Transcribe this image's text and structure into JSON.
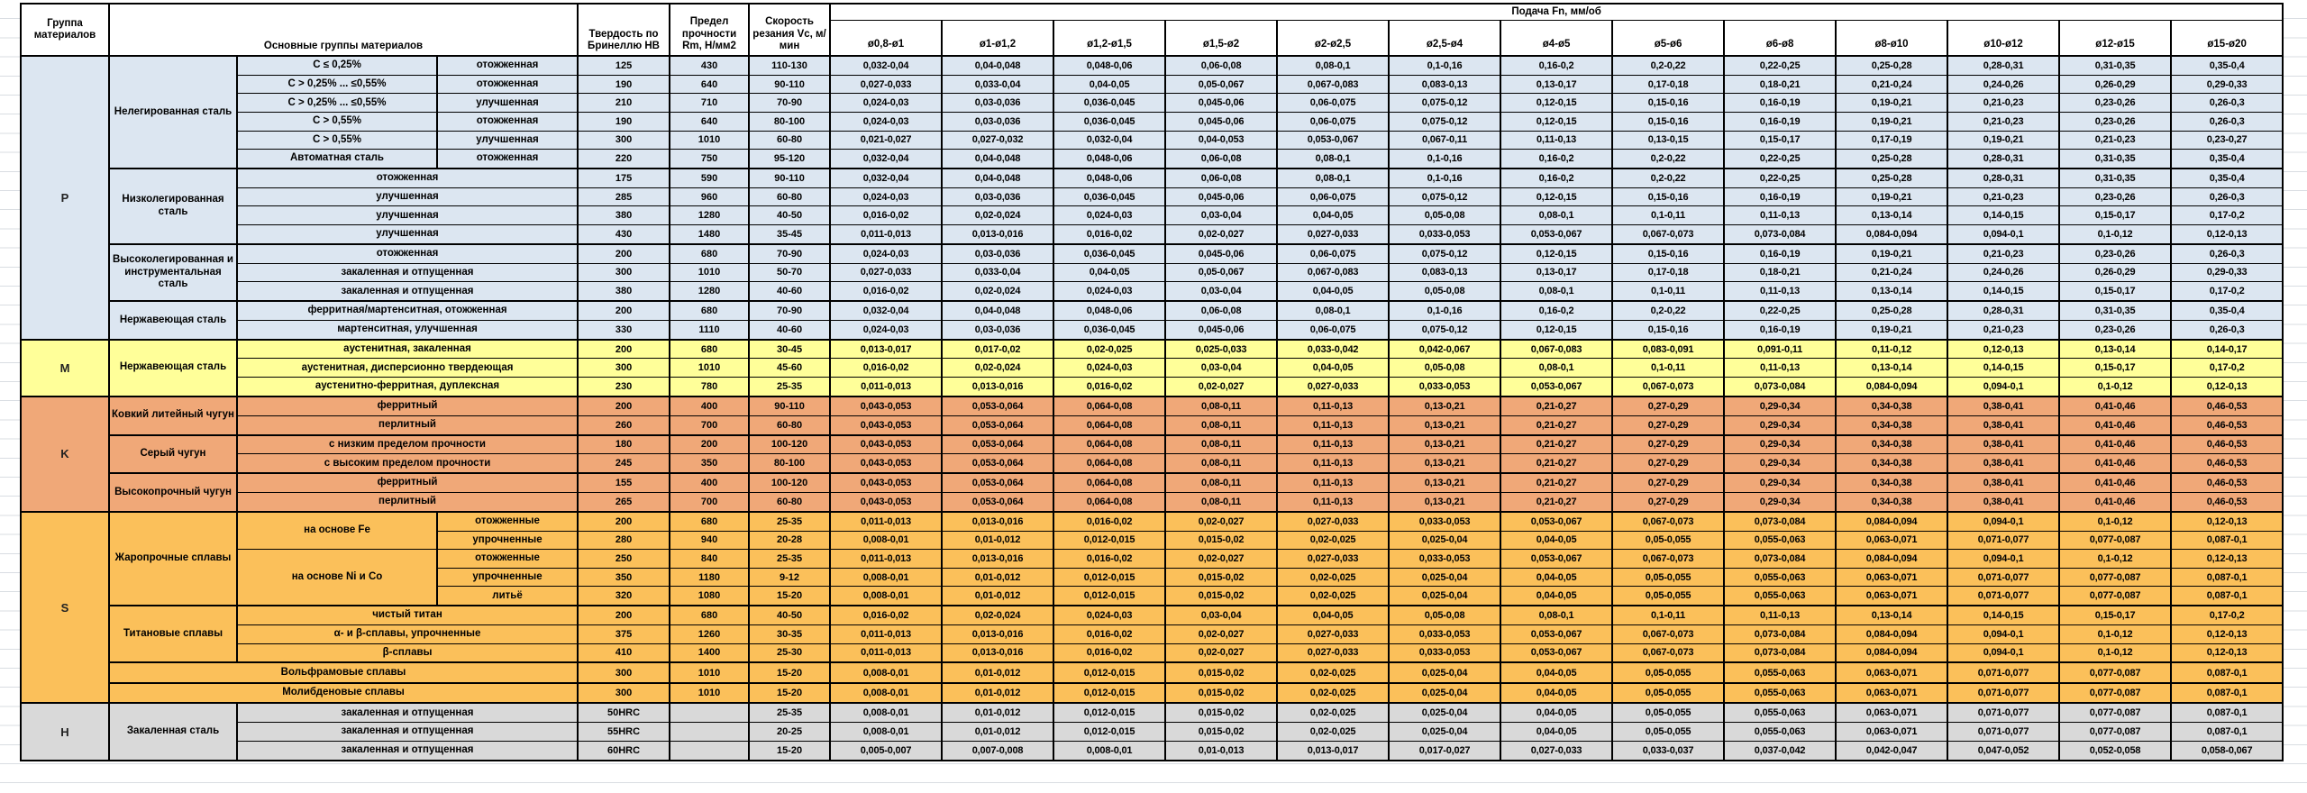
{
  "header": {
    "group_col": "Группа материалов",
    "materials_col": "Основные группы материалов",
    "hardness_col": "Твердость по Бринеллю HB",
    "strength_col": "Предел прочности Rm, Н/мм2",
    "speed_col": "Скорость резания Vc, м/мин",
    "feed_col": "Подача Fn, мм/об",
    "diameters": [
      "ø0,8-ø1",
      "ø1-ø1,2",
      "ø1,2-ø1,5",
      "ø1,5-ø2",
      "ø2-ø2,5",
      "ø2,5-ø4",
      "ø4-ø5",
      "ø5-ø6",
      "ø6-ø8",
      "ø8-ø10",
      "ø10-ø12",
      "ø12-ø15",
      "ø15-ø20"
    ]
  },
  "colors": {
    "P": "#dce6f1",
    "M": "#ffff99",
    "K": "#f0a878",
    "S": "#fbc05a",
    "H": "#d9d9d9"
  },
  "feed_templates": {
    "a": [
      "0,032-0,04",
      "0,04-0,048",
      "0,048-0,06",
      "0,06-0,08",
      "0,08-0,1",
      "0,1-0,16",
      "0,16-0,2",
      "0,2-0,22",
      "0,22-0,25",
      "0,25-0,28",
      "0,28-0,31",
      "0,31-0,35",
      "0,35-0,4"
    ],
    "b": [
      "0,027-0,033",
      "0,033-0,04",
      "0,04-0,05",
      "0,05-0,067",
      "0,067-0,083",
      "0,083-0,13",
      "0,13-0,17",
      "0,17-0,18",
      "0,18-0,21",
      "0,21-0,24",
      "0,24-0,26",
      "0,26-0,29",
      "0,29-0,33"
    ],
    "c": [
      "0,024-0,03",
      "0,03-0,036",
      "0,036-0,045",
      "0,045-0,06",
      "0,06-0,075",
      "0,075-0,12",
      "0,12-0,15",
      "0,15-0,16",
      "0,16-0,19",
      "0,19-0,21",
      "0,21-0,23",
      "0,23-0,26",
      "0,26-0,3"
    ],
    "d": [
      "0,021-0,027",
      "0,027-0,032",
      "0,032-0,04",
      "0,04-0,053",
      "0,053-0,067",
      "0,067-0,11",
      "0,11-0,13",
      "0,13-0,15",
      "0,15-0,17",
      "0,17-0,19",
      "0,19-0,21",
      "0,21-0,23",
      "0,23-0,27"
    ],
    "e": [
      "0,016-0,02",
      "0,02-0,024",
      "0,024-0,03",
      "0,03-0,04",
      "0,04-0,05",
      "0,05-0,08",
      "0,08-0,1",
      "0,1-0,11",
      "0,11-0,13",
      "0,13-0,14",
      "0,14-0,15",
      "0,15-0,17",
      "0,17-0,2"
    ],
    "f": [
      "0,011-0,013",
      "0,013-0,016",
      "0,016-0,02",
      "0,02-0,027",
      "0,027-0,033",
      "0,033-0,053",
      "0,053-0,067",
      "0,067-0,073",
      "0,073-0,084",
      "0,084-0,094",
      "0,094-0,1",
      "0,1-0,12",
      "0,12-0,13"
    ],
    "g": [
      "0,013-0,017",
      "0,017-0,02",
      "0,02-0,025",
      "0,025-0,033",
      "0,033-0,042",
      "0,042-0,067",
      "0,067-0,083",
      "0,083-0,091",
      "0,091-0,11",
      "0,11-0,12",
      "0,12-0,13",
      "0,13-0,14",
      "0,14-0,17"
    ],
    "h": [
      "0,043-0,053",
      "0,053-0,064",
      "0,064-0,08",
      "0,08-0,11",
      "0,11-0,13",
      "0,13-0,21",
      "0,21-0,27",
      "0,27-0,29",
      "0,29-0,34",
      "0,34-0,38",
      "0,38-0,41",
      "0,41-0,46",
      "0,46-0,53"
    ],
    "i": [
      "0,008-0,01",
      "0,01-0,012",
      "0,012-0,015",
      "0,015-0,02",
      "0,02-0,025",
      "0,025-0,04",
      "0,04-0,05",
      "0,05-0,055",
      "0,055-0,063",
      "0,063-0,071",
      "0,071-0,077",
      "0,077-0,087",
      "0,087-0,1"
    ],
    "j": [
      "0,005-0,007",
      "0,007-0,008",
      "0,008-0,01",
      "0,01-0,013",
      "0,013-0,017",
      "0,017-0,027",
      "0,027-0,033",
      "0,033-0,037",
      "0,037-0,042",
      "0,042-0,047",
      "0,047-0,052",
      "0,052-0,058",
      "0,058-0,067"
    ]
  },
  "groups": [
    {
      "letter": "P",
      "materials": [
        {
          "name": "Нелегированная сталь",
          "rows": [
            {
              "mid": [
                {
                  "t": "C ≤ 0,25%"
                },
                {
                  "t": "отожженная"
                }
              ],
              "hb": "125",
              "rm": "430",
              "vc": "110-130",
              "feed": "a"
            },
            {
              "mid": [
                {
                  "t": "C > 0,25% ... ≤0,55%"
                },
                {
                  "t": "отожженная"
                }
              ],
              "hb": "190",
              "rm": "640",
              "vc": "90-110",
              "feed": "b"
            },
            {
              "mid": [
                {
                  "t": "C > 0,25% ... ≤0,55%"
                },
                {
                  "t": "улучшенная"
                }
              ],
              "hb": "210",
              "rm": "710",
              "vc": "70-90",
              "feed": "c"
            },
            {
              "mid": [
                {
                  "t": "C > 0,55%"
                },
                {
                  "t": "отожженная"
                }
              ],
              "hb": "190",
              "rm": "640",
              "vc": "80-100",
              "feed": "c"
            },
            {
              "mid": [
                {
                  "t": "C > 0,55%"
                },
                {
                  "t": "улучшенная"
                }
              ],
              "hb": "300",
              "rm": "1010",
              "vc": "60-80",
              "feed": "d"
            },
            {
              "mid": [
                {
                  "t": "Автоматная сталь"
                },
                {
                  "t": "отожженная"
                }
              ],
              "hb": "220",
              "rm": "750",
              "vc": "95-120",
              "feed": "a"
            }
          ]
        },
        {
          "name": "Низколегированная сталь",
          "rows": [
            {
              "mid": [
                {
                  "t": "отожженная",
                  "span": 2
                }
              ],
              "hb": "175",
              "rm": "590",
              "vc": "90-110",
              "feed": "a"
            },
            {
              "mid": [
                {
                  "t": "улучшенная",
                  "span": 2
                }
              ],
              "hb": "285",
              "rm": "960",
              "vc": "60-80",
              "feed": "c"
            },
            {
              "mid": [
                {
                  "t": "улучшенная",
                  "span": 2
                }
              ],
              "hb": "380",
              "rm": "1280",
              "vc": "40-50",
              "feed": "e"
            },
            {
              "mid": [
                {
                  "t": "улучшенная",
                  "span": 2
                }
              ],
              "hb": "430",
              "rm": "1480",
              "vc": "35-45",
              "feed": "f"
            }
          ]
        },
        {
          "name": "Высоколегированная и инструментальная сталь",
          "rows": [
            {
              "mid": [
                {
                  "t": "отожженная",
                  "span": 2
                }
              ],
              "hb": "200",
              "rm": "680",
              "vc": "70-90",
              "feed": "c"
            },
            {
              "mid": [
                {
                  "t": "закаленная и отпущенная",
                  "span": 2
                }
              ],
              "hb": "300",
              "rm": "1010",
              "vc": "50-70",
              "feed": "b"
            },
            {
              "mid": [
                {
                  "t": "закаленная и отпущенная",
                  "span": 2
                }
              ],
              "hb": "380",
              "rm": "1280",
              "vc": "40-60",
              "feed": "e"
            }
          ]
        },
        {
          "name": "Нержавеющая сталь",
          "rows": [
            {
              "mid": [
                {
                  "t": "ферритная/мартенситная, отожженная",
                  "span": 2
                }
              ],
              "hb": "200",
              "rm": "680",
              "vc": "70-90",
              "feed": "a"
            },
            {
              "mid": [
                {
                  "t": "мартенситная, улучшенная",
                  "span": 2
                }
              ],
              "hb": "330",
              "rm": "1110",
              "vc": "40-60",
              "feed": "c"
            }
          ]
        }
      ]
    },
    {
      "letter": "M",
      "materials": [
        {
          "name": "Нержавеющая сталь",
          "rows": [
            {
              "mid": [
                {
                  "t": "аустенитная, закаленная",
                  "span": 2
                }
              ],
              "hb": "200",
              "rm": "680",
              "vc": "30-45",
              "feed": "g"
            },
            {
              "mid": [
                {
                  "t": "аустенитная, дисперсионно твердеющая",
                  "span": 2
                }
              ],
              "hb": "300",
              "rm": "1010",
              "vc": "45-60",
              "feed": "e"
            },
            {
              "mid": [
                {
                  "t": "аустенитно-ферритная, дуплексная",
                  "span": 2
                }
              ],
              "hb": "230",
              "rm": "780",
              "vc": "25-35",
              "feed": "f"
            }
          ]
        }
      ]
    },
    {
      "letter": "K",
      "materials": [
        {
          "name": "Ковкий литейный чугун",
          "rows": [
            {
              "mid": [
                {
                  "t": "ферритный",
                  "span": 2
                }
              ],
              "hb": "200",
              "rm": "400",
              "vc": "90-110",
              "feed": "h"
            },
            {
              "mid": [
                {
                  "t": "перлитный",
                  "span": 2
                }
              ],
              "hb": "260",
              "rm": "700",
              "vc": "60-80",
              "feed": "h"
            }
          ]
        },
        {
          "name": "Серый чугун",
          "rows": [
            {
              "mid": [
                {
                  "t": "с низким пределом прочности",
                  "span": 2
                }
              ],
              "hb": "180",
              "rm": "200",
              "vc": "100-120",
              "feed": "h"
            },
            {
              "mid": [
                {
                  "t": "с высоким пределом прочности",
                  "span": 2
                }
              ],
              "hb": "245",
              "rm": "350",
              "vc": "80-100",
              "feed": "h"
            }
          ]
        },
        {
          "name": "Высокопрочный чугун",
          "rows": [
            {
              "mid": [
                {
                  "t": "ферритный",
                  "span": 2
                }
              ],
              "hb": "155",
              "rm": "400",
              "vc": "100-120",
              "feed": "h"
            },
            {
              "mid": [
                {
                  "t": "перлитный",
                  "span": 2
                }
              ],
              "hb": "265",
              "rm": "700",
              "vc": "60-80",
              "feed": "h"
            }
          ]
        }
      ]
    },
    {
      "letter": "S",
      "materials": [
        {
          "name": "Жаропрочные сплавы",
          "rows": [
            {
              "mid": [
                {
                  "t": "на основе Fe",
                  "rows": 2
                },
                {
                  "t": "отожженные"
                }
              ],
              "hb": "200",
              "rm": "680",
              "vc": "25-35",
              "feed": "f"
            },
            {
              "mid": [
                {
                  "t": "упрочненные"
                }
              ],
              "hb": "280",
              "rm": "940",
              "vc": "20-28",
              "feed": "i"
            },
            {
              "mid": [
                {
                  "t": "на основе Ni и Co",
                  "rows": 3
                },
                {
                  "t": "отожженные"
                }
              ],
              "hb": "250",
              "rm": "840",
              "vc": "25-35",
              "feed": "f"
            },
            {
              "mid": [
                {
                  "t": "упрочненные"
                }
              ],
              "hb": "350",
              "rm": "1180",
              "vc": "9-12",
              "feed": "i"
            },
            {
              "mid": [
                {
                  "t": "литьё"
                }
              ],
              "hb": "320",
              "rm": "1080",
              "vc": "15-20",
              "feed": "i"
            }
          ]
        },
        {
          "name": "Титановые сплавы",
          "rows": [
            {
              "mid": [
                {
                  "t": "чистый титан",
                  "span": 2
                }
              ],
              "hb": "200",
              "rm": "680",
              "vc": "40-50",
              "feed": "e"
            },
            {
              "mid": [
                {
                  "t": "α- и β-сплавы, упрочненные",
                  "span": 2
                }
              ],
              "hb": "375",
              "rm": "1260",
              "vc": "30-35",
              "feed": "f"
            },
            {
              "mid": [
                {
                  "t": "β-сплавы",
                  "span": 2
                }
              ],
              "hb": "410",
              "rm": "1400",
              "vc": "25-30",
              "feed": "f"
            }
          ]
        },
        {
          "name": "Вольфрамовые сплавы",
          "span": 3,
          "rows": [
            {
              "mid": [],
              "hb": "300",
              "rm": "1010",
              "vc": "15-20",
              "feed": "i"
            }
          ]
        },
        {
          "name": "Молибденовые сплавы",
          "span": 3,
          "rows": [
            {
              "mid": [],
              "hb": "300",
              "rm": "1010",
              "vc": "15-20",
              "feed": "i"
            }
          ]
        }
      ]
    },
    {
      "letter": "H",
      "materials": [
        {
          "name": "Закаленная сталь",
          "rows": [
            {
              "mid": [
                {
                  "t": "закаленная и отпущенная",
                  "span": 2
                }
              ],
              "hb": "50HRC",
              "rm": "",
              "vc": "25-35",
              "feed": "i"
            },
            {
              "mid": [
                {
                  "t": "закаленная и отпущенная",
                  "span": 2
                }
              ],
              "hb": "55HRC",
              "rm": "",
              "vc": "20-25",
              "feed": "i"
            },
            {
              "mid": [
                {
                  "t": "закаленная и отпущенная",
                  "span": 2
                }
              ],
              "hb": "60HRC",
              "rm": "",
              "vc": "15-20",
              "feed": "j"
            }
          ]
        }
      ]
    }
  ]
}
